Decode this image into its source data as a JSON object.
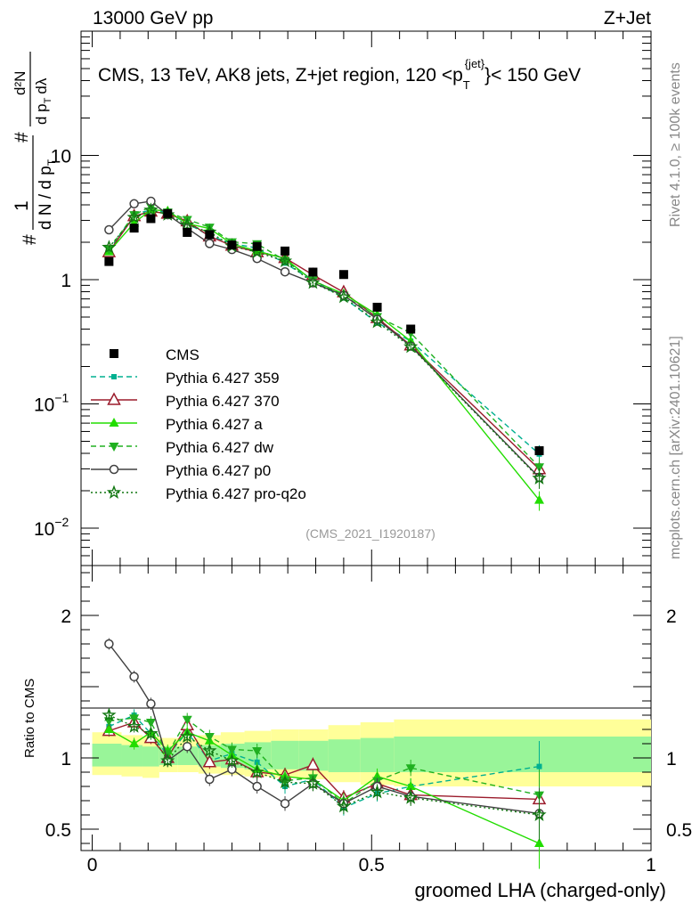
{
  "header": {
    "left": "13000 GeV pp",
    "right": "Z+Jet"
  },
  "plot_title": "CMS, 13 TeV, AK8 jets, Z+jet region, 120 <p",
  "plot_title_sup": "{jet}",
  "plot_title_sub": "T",
  "plot_title_tail": "}< 150 GeV",
  "ylabel": {
    "hash1": "#",
    "one": "1",
    "den": "d N / d p",
    "den_sub": "T",
    "hash2": "#",
    "num2": "d²N",
    "den2": "d p",
    "den2_sub": "T",
    "den2_tail": "dλ"
  },
  "side_label_top": "Rivet 4.1.0, ≥ 100k events",
  "side_label_bottom": "mcplots.cern.ch [arXiv:2401.10621]",
  "analysis_id": "(CMS_2021_I1920187)",
  "ratio_ylabel": "Ratio to CMS",
  "xlabel": "groomed LHA (charged-only)",
  "main_yticks": [
    {
      "value": 10,
      "label": "10"
    },
    {
      "value": 1,
      "label": "1"
    },
    {
      "value": 0.1,
      "label": "10",
      "exp": "−1"
    },
    {
      "value": 0.01,
      "label": "10",
      "exp": "−2"
    }
  ],
  "ratio_yticks": [
    {
      "value": 2,
      "label": "2"
    },
    {
      "value": 1,
      "label": "1"
    },
    {
      "value": 0.5,
      "label": "0.5"
    }
  ],
  "xticks": [
    {
      "value": 0,
      "label": "0"
    },
    {
      "value": 0.5,
      "label": "0.5"
    },
    {
      "value": 1,
      "label": "1"
    }
  ],
  "chart_data": {
    "type": "line",
    "title": "CMS, 13 TeV, AK8 jets, Z+jet region, 120 < pT < 150 GeV",
    "xlabel": "groomed LHA (charged-only)",
    "ylabel": "1/N dN/dλ",
    "yscale": "log",
    "xlim": [
      -0.02,
      1.0
    ],
    "ylim": [
      0.005,
      100
    ],
    "ratio_ylim": [
      0.35,
      2.35
    ],
    "ratio_ylabel": "Ratio to CMS",
    "x": [
      0.03,
      0.075,
      0.105,
      0.135,
      0.17,
      0.21,
      0.25,
      0.295,
      0.345,
      0.395,
      0.45,
      0.51,
      0.57,
      0.8
    ],
    "data": {
      "name": "CMS",
      "color": "#000000",
      "values": [
        1.4,
        2.6,
        3.1,
        3.4,
        2.4,
        2.3,
        1.9,
        1.85,
        1.7,
        1.15,
        1.1,
        0.6,
        0.4,
        0.042
      ],
      "band_yellow": [
        [
          0.88,
          1.18
        ],
        [
          0.87,
          1.16
        ],
        [
          0.86,
          1.15
        ],
        [
          0.9,
          1.14
        ],
        [
          0.9,
          1.14
        ],
        [
          0.89,
          1.16
        ],
        [
          0.88,
          1.18
        ],
        [
          0.87,
          1.19
        ],
        [
          0.86,
          1.2
        ],
        [
          0.85,
          1.2
        ],
        [
          0.83,
          1.23
        ],
        [
          0.81,
          1.25
        ],
        [
          0.8,
          1.26
        ],
        [
          0.8,
          1.27
        ]
      ],
      "band_green": [
        [
          0.94,
          1.1
        ],
        [
          0.94,
          1.09
        ],
        [
          0.94,
          1.08
        ],
        [
          0.95,
          1.08
        ],
        [
          0.95,
          1.08
        ],
        [
          0.94,
          1.09
        ],
        [
          0.93,
          1.1
        ],
        [
          0.92,
          1.11
        ],
        [
          0.92,
          1.12
        ],
        [
          0.91,
          1.12
        ],
        [
          0.9,
          1.13
        ],
        [
          0.9,
          1.14
        ],
        [
          0.89,
          1.15
        ],
        [
          0.9,
          1.15
        ]
      ]
    },
    "series": [
      {
        "name": "Pythia 6.427 359",
        "color": "#00b090",
        "dash": "6,4",
        "marker": "square-small",
        "ratio": [
          1.22,
          1.3,
          1.17,
          1.02,
          1.18,
          0.98,
          1.03,
          0.97,
          0.8,
          0.85,
          0.65,
          0.75,
          0.8,
          0.94
        ]
      },
      {
        "name": "Pythia 6.427 370",
        "color": "#9b1c2c",
        "dash": "",
        "marker": "triangle-open",
        "ratio": [
          1.19,
          1.25,
          1.14,
          1.0,
          1.23,
          0.97,
          0.99,
          0.9,
          0.88,
          0.95,
          0.72,
          0.82,
          0.74,
          0.71
        ]
      },
      {
        "name": "Pythia 6.427 a",
        "color": "#22dd00",
        "dash": "",
        "marker": "triangle",
        "ratio": [
          1.2,
          1.1,
          1.18,
          1.05,
          1.18,
          1.12,
          1.02,
          0.92,
          0.87,
          0.85,
          0.7,
          0.87,
          0.8,
          0.4
        ]
      },
      {
        "name": "Pythia 6.427 dw",
        "color": "#20b020",
        "dash": "6,4",
        "marker": "triangle-down",
        "ratio": [
          1.26,
          1.28,
          1.25,
          1.03,
          1.27,
          1.15,
          1.06,
          1.05,
          0.84,
          0.86,
          0.68,
          0.84,
          0.93,
          0.74
        ]
      },
      {
        "name": "Pythia 6.427 p0",
        "color": "#404040",
        "dash": "",
        "marker": "circle-open",
        "ratio": [
          1.8,
          1.57,
          1.38,
          0.98,
          1.08,
          0.85,
          0.92,
          0.8,
          0.68,
          0.82,
          0.68,
          0.8,
          0.73,
          0.61
        ]
      },
      {
        "name": "Pythia 6.427 pro-q2o",
        "color": "#117711",
        "dash": "2,3",
        "marker": "star",
        "ratio": [
          1.3,
          1.22,
          1.17,
          0.98,
          1.15,
          1.05,
          0.98,
          0.9,
          0.83,
          0.82,
          0.66,
          0.76,
          0.72,
          0.6
        ]
      }
    ]
  }
}
